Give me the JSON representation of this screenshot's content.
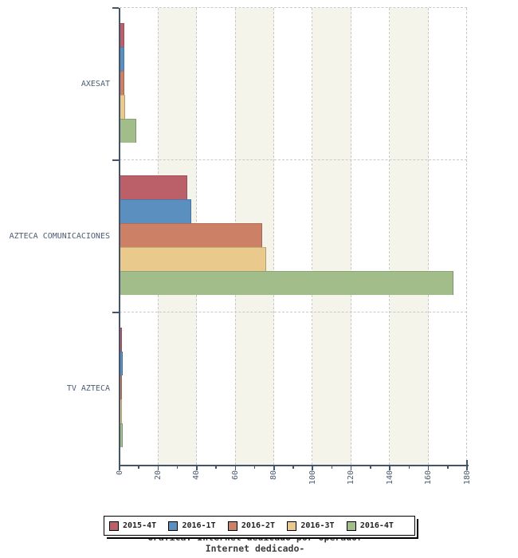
{
  "chart_data": {
    "type": "bar",
    "orientation": "horizontal",
    "title": "Gráfica: Internet dedicado por operador",
    "subtitle": "Internet dedicado-",
    "categories": [
      "AXESAT",
      "AZTECA COMUNICACIONES",
      "TV AZTECA"
    ],
    "series": [
      {
        "name": "2015-4T",
        "color": "#bb5f69",
        "values": [
          2.3,
          35,
          1.4
        ]
      },
      {
        "name": "2016-1T",
        "color": "#5a8fc0",
        "values": [
          2.5,
          37,
          1.7
        ]
      },
      {
        "name": "2016-2T",
        "color": "#cc8166",
        "values": [
          2.5,
          74,
          1.3
        ]
      },
      {
        "name": "2016-3T",
        "color": "#e9ca8c",
        "values": [
          3.0,
          76,
          1.3
        ]
      },
      {
        "name": "2016-4T",
        "color": "#a2bd8a",
        "values": [
          8.5,
          173,
          1.6
        ]
      }
    ],
    "xlim": [
      0,
      180
    ],
    "xticks": [
      0,
      20,
      40,
      60,
      80,
      100,
      120,
      140,
      160,
      180
    ],
    "x_minor_tick_step": 10,
    "grid": "vertical-dashed",
    "background_bands": [
      [
        20,
        40
      ],
      [
        60,
        80
      ],
      [
        100,
        120
      ],
      [
        140,
        160
      ]
    ],
    "legend_position": "bottom"
  },
  "colors": {
    "axis": "#44546a",
    "tick_label": "#4d5c73",
    "grid_line": "#c9c9c9",
    "band": "#f4f4ea",
    "title_text": "#3c3c3c",
    "legend_border": "#000000",
    "legend_text": "#1f1f1f"
  }
}
